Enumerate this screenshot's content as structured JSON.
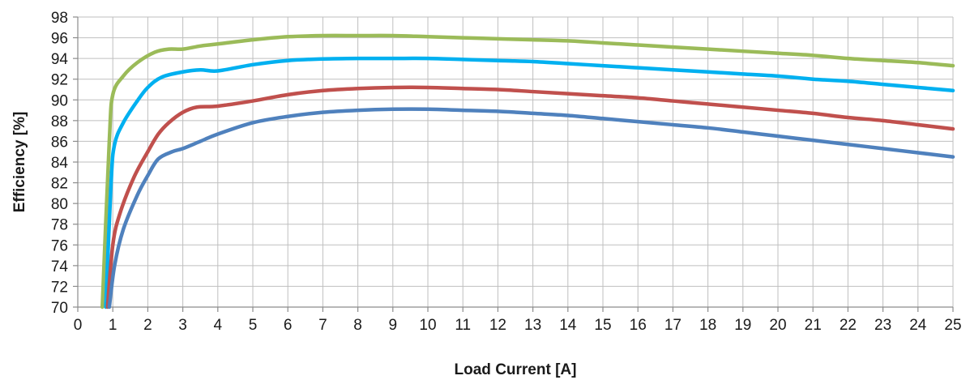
{
  "chart_data": {
    "type": "line",
    "title": "",
    "xlabel": "Load Current [A]",
    "ylabel": "Efficiency [%]",
    "xlim": [
      0,
      25
    ],
    "ylim": [
      70,
      98
    ],
    "x_ticks": [
      "0",
      "1",
      "2",
      "3",
      "4",
      "5",
      "6",
      "7",
      "8",
      "9",
      "10",
      "11",
      "12",
      "13",
      "14",
      "15",
      "16",
      "17",
      "18",
      "19",
      "20",
      "21",
      "22",
      "23",
      "24",
      "25"
    ],
    "y_ticks": [
      "70",
      "72",
      "74",
      "76",
      "78",
      "80",
      "82",
      "84",
      "86",
      "88",
      "90",
      "92",
      "94",
      "96",
      "98"
    ],
    "grid": true,
    "legend": "none",
    "series": [
      {
        "color": "#9bbb59",
        "points": [
          [
            0.7,
            70
          ],
          [
            0.9,
            86
          ],
          [
            1.0,
            90.5
          ],
          [
            1.3,
            92.3
          ],
          [
            1.7,
            93.6
          ],
          [
            2.2,
            94.6
          ],
          [
            2.6,
            94.9
          ],
          [
            3,
            94.9
          ],
          [
            3.5,
            95.2
          ],
          [
            4,
            95.4
          ],
          [
            5,
            95.8
          ],
          [
            6,
            96.1
          ],
          [
            7,
            96.2
          ],
          [
            8,
            96.2
          ],
          [
            9,
            96.2
          ],
          [
            10,
            96.1
          ],
          [
            11,
            96.0
          ],
          [
            12,
            95.9
          ],
          [
            13,
            95.8
          ],
          [
            14,
            95.7
          ],
          [
            15,
            95.5
          ],
          [
            16,
            95.3
          ],
          [
            17,
            95.1
          ],
          [
            18,
            94.9
          ],
          [
            19,
            94.7
          ],
          [
            20,
            94.5
          ],
          [
            21,
            94.3
          ],
          [
            22,
            94.0
          ],
          [
            23,
            93.8
          ],
          [
            24,
            93.6
          ],
          [
            25,
            93.3
          ]
        ]
      },
      {
        "color": "#00b0f0",
        "points": [
          [
            0.8,
            70
          ],
          [
            0.95,
            82
          ],
          [
            1.05,
            85.7
          ],
          [
            1.3,
            87.8
          ],
          [
            1.7,
            89.9
          ],
          [
            2.0,
            91.2
          ],
          [
            2.4,
            92.2
          ],
          [
            3,
            92.7
          ],
          [
            3.5,
            92.9
          ],
          [
            4,
            92.8
          ],
          [
            5,
            93.4
          ],
          [
            6,
            93.8
          ],
          [
            7,
            93.95
          ],
          [
            8,
            94.0
          ],
          [
            9,
            94.0
          ],
          [
            10,
            94.0
          ],
          [
            11,
            93.9
          ],
          [
            12,
            93.8
          ],
          [
            13,
            93.7
          ],
          [
            14,
            93.5
          ],
          [
            15,
            93.3
          ],
          [
            16,
            93.1
          ],
          [
            17,
            92.9
          ],
          [
            18,
            92.7
          ],
          [
            19,
            92.5
          ],
          [
            20,
            92.3
          ],
          [
            21,
            92.0
          ],
          [
            22,
            91.8
          ],
          [
            23,
            91.5
          ],
          [
            24,
            91.2
          ],
          [
            25,
            90.9
          ]
        ]
      },
      {
        "color": "#c0504d",
        "points": [
          [
            0.85,
            70
          ],
          [
            1.0,
            76
          ],
          [
            1.2,
            79
          ],
          [
            1.6,
            82.5
          ],
          [
            2.0,
            85
          ],
          [
            2.3,
            86.7
          ],
          [
            2.6,
            87.8
          ],
          [
            3,
            88.8
          ],
          [
            3.4,
            89.3
          ],
          [
            4,
            89.4
          ],
          [
            5,
            89.9
          ],
          [
            6,
            90.5
          ],
          [
            7,
            90.9
          ],
          [
            8,
            91.1
          ],
          [
            9,
            91.2
          ],
          [
            10,
            91.2
          ],
          [
            11,
            91.1
          ],
          [
            12,
            91.0
          ],
          [
            13,
            90.8
          ],
          [
            14,
            90.6
          ],
          [
            15,
            90.4
          ],
          [
            16,
            90.2
          ],
          [
            17,
            89.9
          ],
          [
            18,
            89.6
          ],
          [
            19,
            89.3
          ],
          [
            20,
            89.0
          ],
          [
            21,
            88.7
          ],
          [
            22,
            88.3
          ],
          [
            23,
            88.0
          ],
          [
            24,
            87.6
          ],
          [
            25,
            87.2
          ]
        ]
      },
      {
        "color": "#4f81bd",
        "points": [
          [
            0.9,
            70
          ],
          [
            1.05,
            74
          ],
          [
            1.3,
            77.5
          ],
          [
            1.7,
            80.8
          ],
          [
            2.0,
            82.7
          ],
          [
            2.3,
            84.3
          ],
          [
            2.7,
            85
          ],
          [
            3,
            85.3
          ],
          [
            3.5,
            86
          ],
          [
            4,
            86.7
          ],
          [
            5,
            87.8
          ],
          [
            6,
            88.4
          ],
          [
            7,
            88.8
          ],
          [
            8,
            89.0
          ],
          [
            9,
            89.1
          ],
          [
            10,
            89.1
          ],
          [
            11,
            89.0
          ],
          [
            12,
            88.9
          ],
          [
            13,
            88.7
          ],
          [
            14,
            88.5
          ],
          [
            15,
            88.2
          ],
          [
            16,
            87.9
          ],
          [
            17,
            87.6
          ],
          [
            18,
            87.3
          ],
          [
            19,
            86.9
          ],
          [
            20,
            86.5
          ],
          [
            21,
            86.1
          ],
          [
            22,
            85.7
          ],
          [
            23,
            85.3
          ],
          [
            24,
            84.9
          ],
          [
            25,
            84.5
          ]
        ]
      }
    ]
  }
}
